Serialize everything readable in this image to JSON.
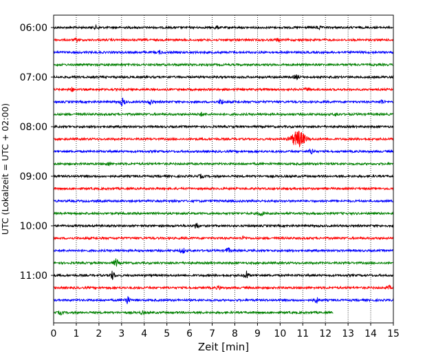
{
  "chart_data": {
    "type": "line",
    "title": "",
    "xlabel": "Zeit  [min]",
    "ylabel": "UTC (Lokalzeit = UTC + 02:00)",
    "xlim": [
      0,
      15
    ],
    "x_ticks": [
      "0",
      "1",
      "2",
      "3",
      "4",
      "5",
      "6",
      "7",
      "8",
      "9",
      "10",
      "11",
      "12",
      "13",
      "14",
      "15"
    ],
    "y_ticks": [
      {
        "label": "06:00",
        "row": 0
      },
      {
        "label": "07:00",
        "row": 4
      },
      {
        "label": "08:00",
        "row": 8
      },
      {
        "label": "09:00",
        "row": 12
      },
      {
        "label": "10:00",
        "row": 16
      },
      {
        "label": "11:00",
        "row": 20
      }
    ],
    "grid": "vertical-dotted",
    "trace_colors": [
      "#000000",
      "#ff0000",
      "#0000ff",
      "#008000"
    ],
    "rows": [
      {
        "start": "06:00",
        "color": "#000000",
        "end_min": 15,
        "events": [
          {
            "t": 1.9,
            "amp": 1.2
          },
          {
            "t": 7.2,
            "amp": 1.1
          },
          {
            "t": 11.7,
            "amp": 1.3
          }
        ]
      },
      {
        "start": "06:15",
        "color": "#ff0000",
        "end_min": 15,
        "events": [
          {
            "t": 1.0,
            "amp": 1.1
          },
          {
            "t": 9.9,
            "amp": 1.0
          }
        ]
      },
      {
        "start": "06:30",
        "color": "#0000ff",
        "end_min": 15,
        "events": [
          {
            "t": 4.7,
            "amp": 1.1
          }
        ]
      },
      {
        "start": "06:45",
        "color": "#008000",
        "end_min": 15,
        "events": []
      },
      {
        "start": "07:00",
        "color": "#000000",
        "end_min": 15,
        "events": [
          {
            "t": 10.7,
            "amp": 1.6
          }
        ]
      },
      {
        "start": "07:15",
        "color": "#ff0000",
        "end_min": 15,
        "events": [
          {
            "t": 0.8,
            "amp": 1.4
          },
          {
            "t": 11.2,
            "amp": 1.2
          }
        ]
      },
      {
        "start": "07:30",
        "color": "#0000ff",
        "end_min": 15,
        "events": [
          {
            "t": 3.05,
            "amp": 3.0
          },
          {
            "t": 4.3,
            "amp": 2.0
          },
          {
            "t": 7.4,
            "amp": 2.2
          },
          {
            "t": 14.5,
            "amp": 1.6
          }
        ]
      },
      {
        "start": "07:45",
        "color": "#008000",
        "end_min": 15,
        "events": [
          {
            "t": 6.5,
            "amp": 1.2
          },
          {
            "t": 12.5,
            "amp": 1.2
          }
        ]
      },
      {
        "start": "08:00",
        "color": "#000000",
        "end_min": 15,
        "events": []
      },
      {
        "start": "08:15",
        "color": "#ff0000",
        "end_min": 15,
        "events": [
          {
            "t": 10.8,
            "amp": 6.5
          }
        ]
      },
      {
        "start": "08:30",
        "color": "#0000ff",
        "end_min": 15,
        "events": [
          {
            "t": 11.4,
            "amp": 2.2
          }
        ]
      },
      {
        "start": "08:45",
        "color": "#008000",
        "end_min": 15,
        "events": [
          {
            "t": 2.4,
            "amp": 1.2
          }
        ]
      },
      {
        "start": "09:00",
        "color": "#000000",
        "end_min": 15,
        "events": [
          {
            "t": 6.5,
            "amp": 1.2
          }
        ]
      },
      {
        "start": "09:15",
        "color": "#ff0000",
        "end_min": 15,
        "events": []
      },
      {
        "start": "09:30",
        "color": "#0000ff",
        "end_min": 15,
        "events": []
      },
      {
        "start": "09:45",
        "color": "#008000",
        "end_min": 15,
        "events": [
          {
            "t": 9.15,
            "amp": 2.0
          }
        ]
      },
      {
        "start": "10:00",
        "color": "#000000",
        "end_min": 15,
        "events": [
          {
            "t": 6.3,
            "amp": 2.2
          }
        ]
      },
      {
        "start": "10:15",
        "color": "#ff0000",
        "end_min": 15,
        "events": [
          {
            "t": 8.4,
            "amp": 1.3
          }
        ]
      },
      {
        "start": "10:30",
        "color": "#0000ff",
        "end_min": 15,
        "events": [
          {
            "t": 5.7,
            "amp": 2.0
          },
          {
            "t": 7.7,
            "amp": 2.0
          }
        ]
      },
      {
        "start": "10:45",
        "color": "#008000",
        "end_min": 15,
        "events": [
          {
            "t": 2.75,
            "amp": 3.0
          }
        ]
      },
      {
        "start": "11:00",
        "color": "#000000",
        "end_min": 15,
        "events": [
          {
            "t": 2.6,
            "amp": 3.2
          },
          {
            "t": 8.5,
            "amp": 3.4
          }
        ]
      },
      {
        "start": "11:15",
        "color": "#ff0000",
        "end_min": 15,
        "events": [
          {
            "t": 7.3,
            "amp": 1.3
          },
          {
            "t": 14.8,
            "amp": 1.2
          }
        ]
      },
      {
        "start": "11:30",
        "color": "#0000ff",
        "end_min": 15,
        "events": [
          {
            "t": 3.25,
            "amp": 3.0
          },
          {
            "t": 11.6,
            "amp": 2.0
          }
        ]
      },
      {
        "start": "11:45",
        "color": "#008000",
        "end_min": 12.35,
        "events": [
          {
            "t": 0.3,
            "amp": 1.2
          },
          {
            "t": 3.9,
            "amp": 1.1
          }
        ]
      }
    ]
  }
}
